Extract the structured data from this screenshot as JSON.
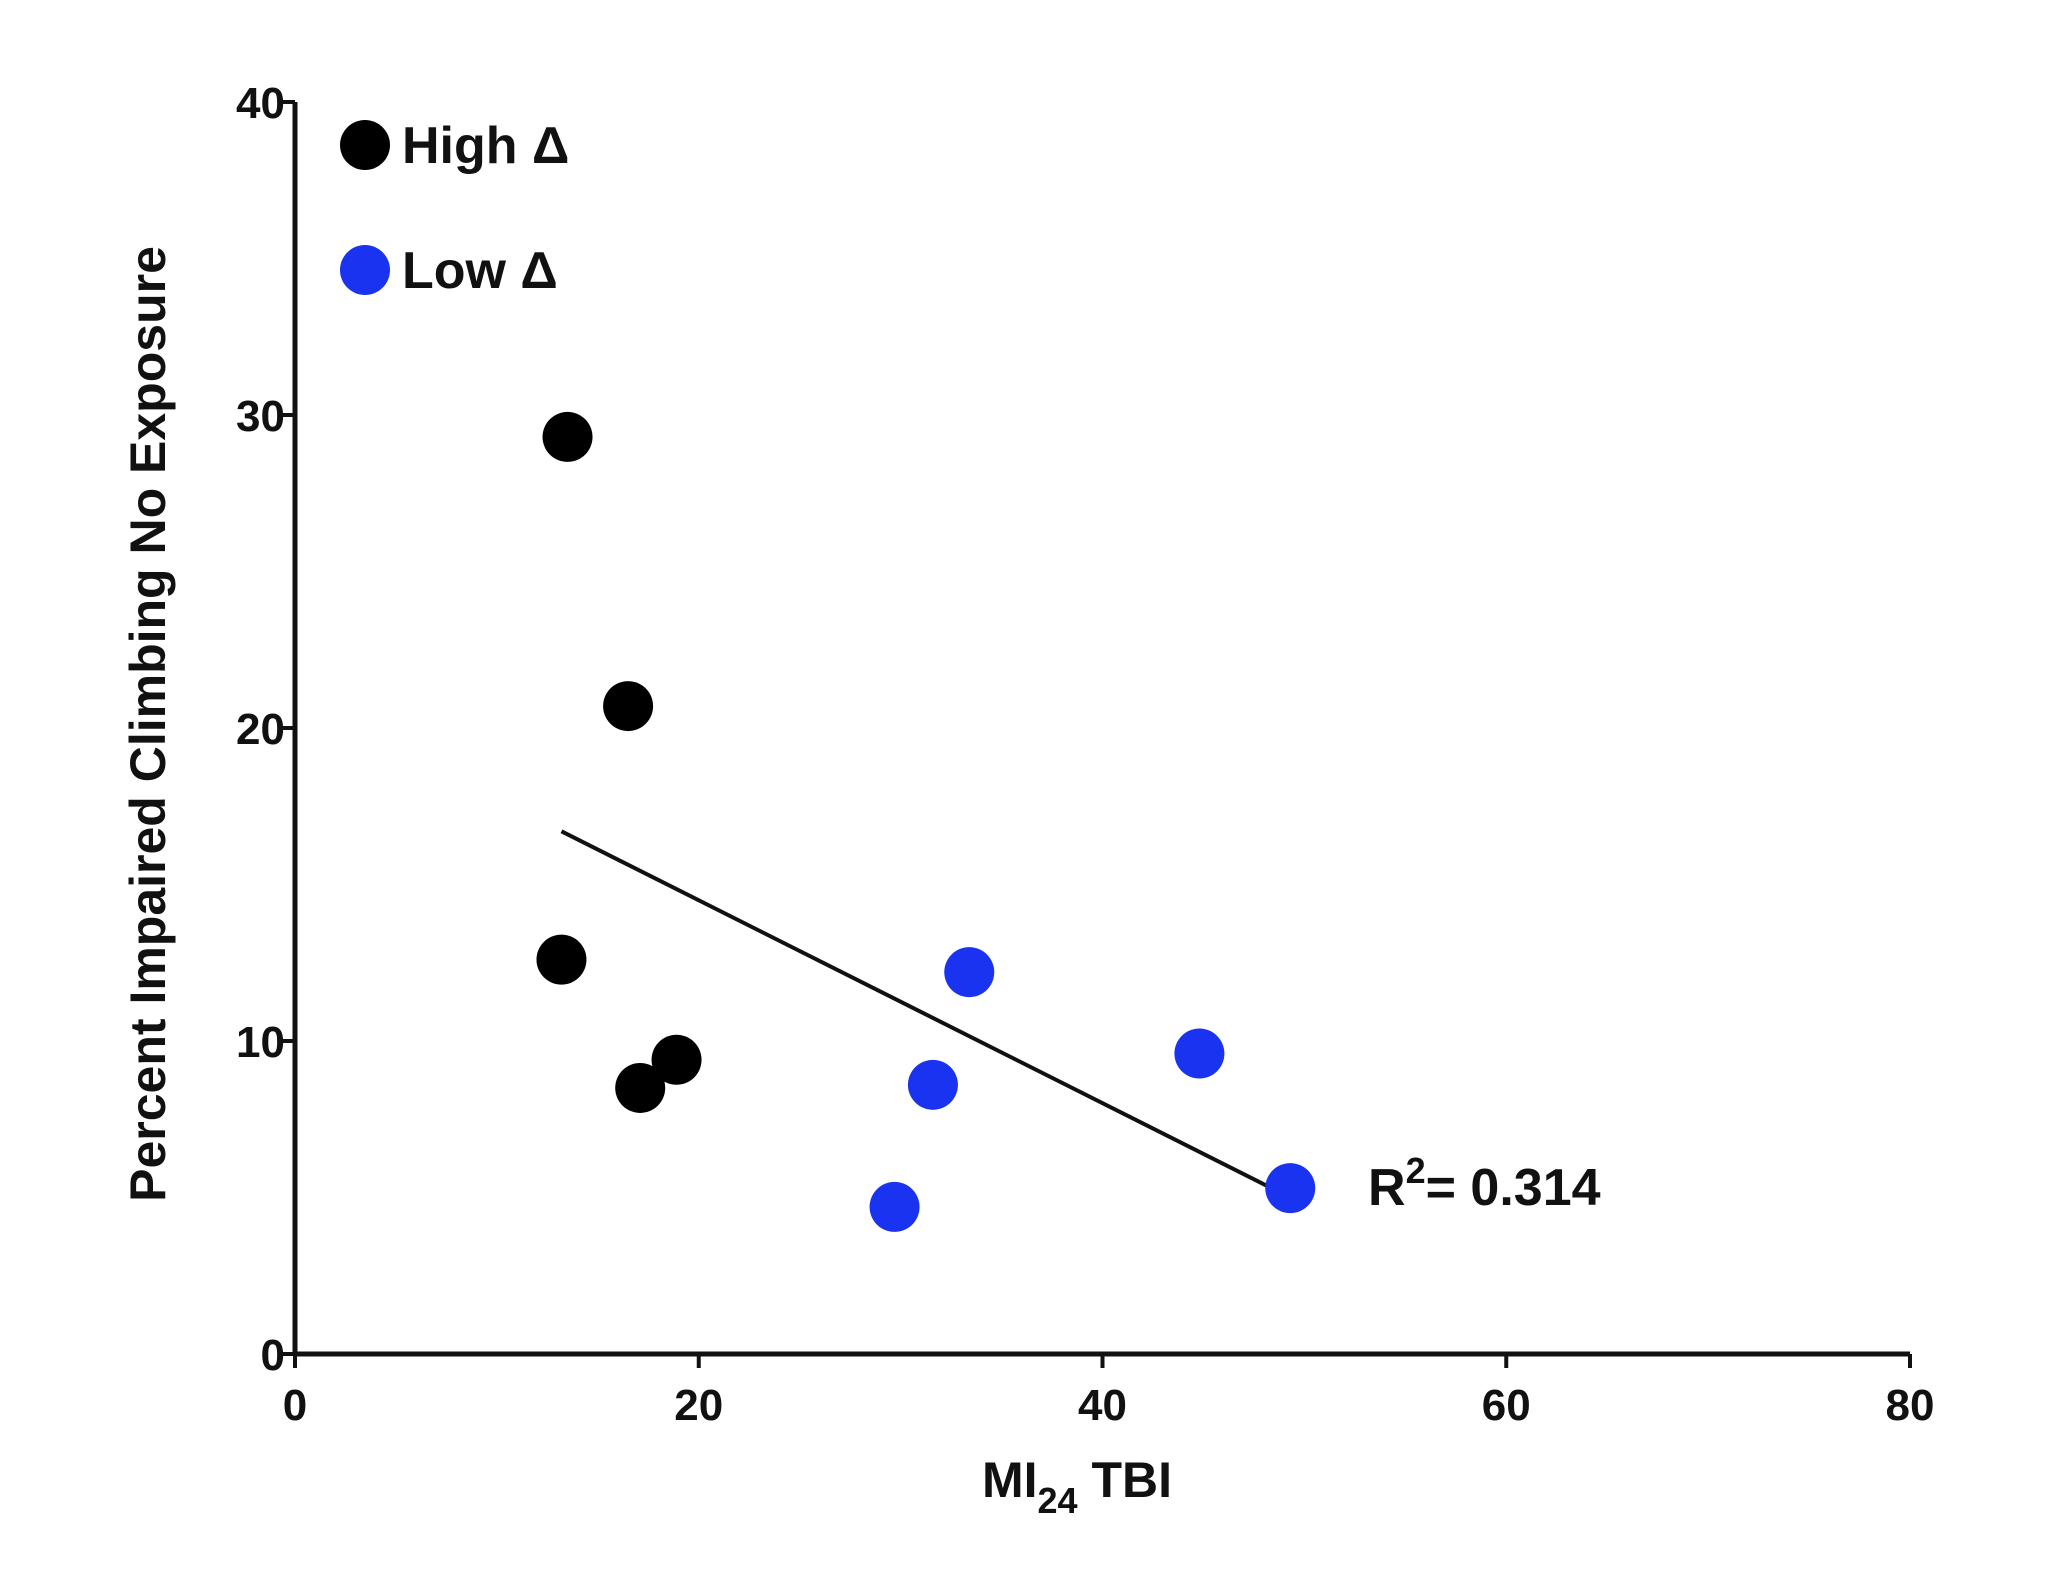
{
  "chart_data": {
    "type": "scatter",
    "xlabel": {
      "main": "MI",
      "sub": "24",
      "rest": " TBI"
    },
    "ylabel": "Percent Impaired Climbing No Exposure",
    "xlim": [
      0,
      80
    ],
    "ylim": [
      0,
      40
    ],
    "xticks": [
      0,
      20,
      40,
      60,
      80
    ],
    "yticks": [
      0,
      10,
      20,
      30,
      40
    ],
    "grid": false,
    "legend_position": "top-left",
    "series": [
      {
        "name": "High Δ",
        "color": "#000000",
        "points": [
          {
            "x": 13.5,
            "y": 29.3
          },
          {
            "x": 16.5,
            "y": 20.7
          },
          {
            "x": 13.2,
            "y": 12.6
          },
          {
            "x": 18.9,
            "y": 9.4
          },
          {
            "x": 17.1,
            "y": 8.5
          }
        ]
      },
      {
        "name": "Low Δ",
        "color": "#1a33f0",
        "points": [
          {
            "x": 33.4,
            "y": 12.2
          },
          {
            "x": 44.8,
            "y": 9.6
          },
          {
            "x": 31.6,
            "y": 8.6
          },
          {
            "x": 29.7,
            "y": 4.7
          },
          {
            "x": 49.3,
            "y": 5.3
          }
        ]
      }
    ],
    "trendline": {
      "x1": 13.2,
      "y1": 16.7,
      "x2": 49.3,
      "y2": 5.0
    },
    "annotation": {
      "base": "R",
      "sup": "2",
      "rest": "= 0.314"
    }
  }
}
